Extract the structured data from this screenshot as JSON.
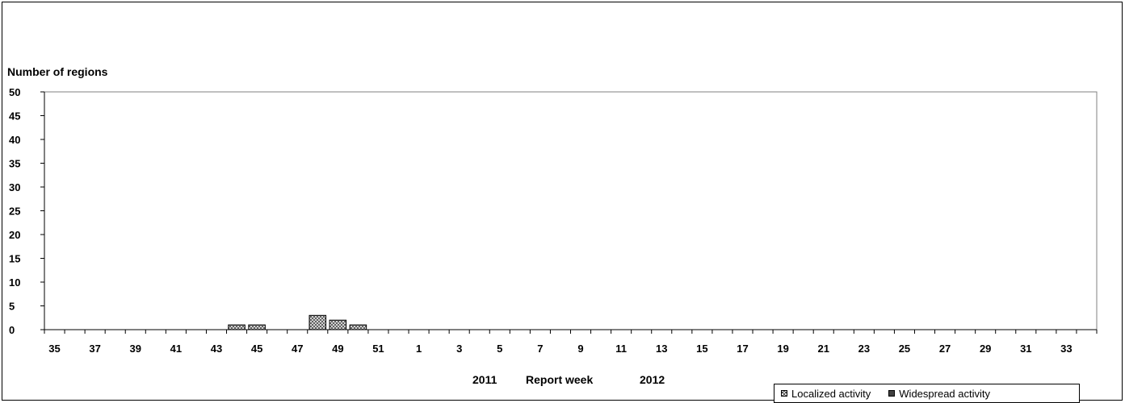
{
  "chart_data": {
    "type": "bar",
    "stacked": true,
    "ylabel": "Number of regions",
    "xlabel": "Report week",
    "x_year_start": "2011",
    "x_year_end": "2012",
    "ylim": [
      0,
      50
    ],
    "y_ticks": [
      0,
      5,
      10,
      15,
      20,
      25,
      30,
      35,
      40,
      45,
      50
    ],
    "categories": [
      35,
      36,
      37,
      38,
      39,
      40,
      41,
      42,
      43,
      44,
      45,
      46,
      47,
      48,
      49,
      50,
      51,
      52,
      1,
      2,
      3,
      4,
      5,
      6,
      7,
      8,
      9,
      10,
      11,
      12,
      13,
      14,
      15,
      16,
      17,
      18,
      19,
      20,
      21,
      22,
      23,
      24,
      25,
      26,
      27,
      28,
      29,
      30,
      31,
      32,
      33,
      34
    ],
    "x_tick_labels": [
      "35",
      "37",
      "39",
      "41",
      "43",
      "45",
      "47",
      "49",
      "51",
      "1",
      "3",
      "5",
      "7",
      "9",
      "11",
      "13",
      "15",
      "17",
      "19",
      "21",
      "23",
      "25",
      "27",
      "29",
      "31",
      "33"
    ],
    "series": [
      {
        "name": "Localized activity",
        "values": [
          0,
          0,
          0,
          0,
          0,
          0,
          0,
          0,
          0,
          1,
          1,
          0,
          0,
          3,
          2,
          1,
          0,
          0,
          0,
          0,
          0,
          0,
          0,
          0,
          0,
          0,
          0,
          0,
          0,
          0,
          0,
          0,
          0,
          0,
          0,
          0,
          0,
          0,
          0,
          0,
          0,
          0,
          0,
          0,
          0,
          0,
          0,
          0,
          0,
          0,
          0,
          0
        ]
      },
      {
        "name": "Widespread activity",
        "values": [
          0,
          0,
          0,
          0,
          0,
          0,
          0,
          0,
          0,
          0,
          0,
          0,
          0,
          0,
          0,
          0,
          0,
          0,
          0,
          0,
          0,
          0,
          0,
          0,
          0,
          0,
          0,
          0,
          0,
          0,
          0,
          0,
          0,
          0,
          0,
          0,
          0,
          0,
          0,
          0,
          0,
          0,
          0,
          0,
          0,
          0,
          0,
          0,
          0,
          0,
          0,
          0
        ]
      }
    ],
    "colors": {
      "localized": "#ffffff",
      "localized_pattern": "#555555",
      "widespread": "#404040",
      "plot_border": "#808080"
    },
    "grid": false,
    "legend_position": "bottom-right"
  }
}
